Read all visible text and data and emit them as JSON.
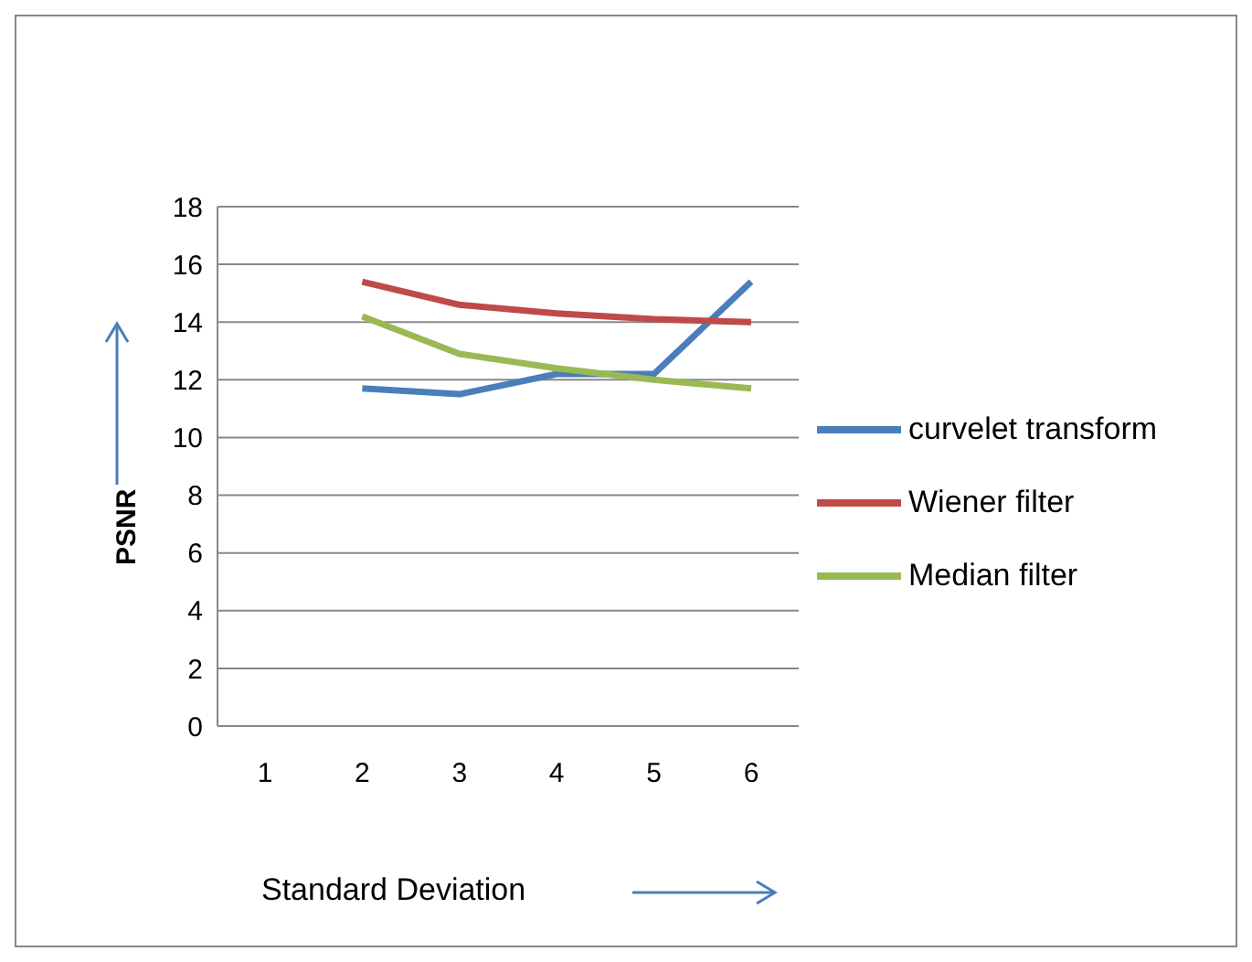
{
  "chart_data": {
    "type": "line",
    "xlabel": "Standard Deviation",
    "ylabel": "PSNR",
    "categories": [
      "1",
      "2",
      "3",
      "4",
      "5",
      "6"
    ],
    "series": [
      {
        "name": "curvelet transform",
        "color": "#4a7ebb",
        "values": [
          null,
          11.7,
          11.5,
          12.2,
          12.2,
          15.4
        ]
      },
      {
        "name": "Wiener filter",
        "color": "#be4b48",
        "values": [
          null,
          15.4,
          14.6,
          14.3,
          14.1,
          14.0
        ]
      },
      {
        "name": "Median filter",
        "color": "#98b954",
        "values": [
          null,
          14.2,
          12.9,
          12.4,
          12.0,
          11.7
        ]
      }
    ],
    "ylim": [
      0,
      18
    ],
    "yticks": [
      0,
      2,
      4,
      6,
      8,
      10,
      12,
      14,
      16,
      18
    ],
    "grid": "y",
    "legend": "right",
    "marker": "none",
    "line_style": "solid"
  }
}
